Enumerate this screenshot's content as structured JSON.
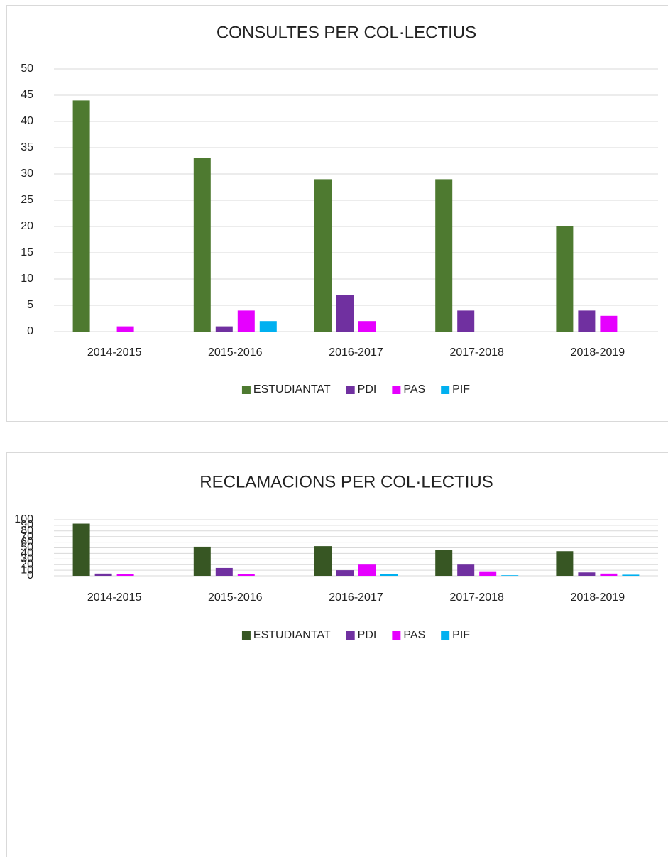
{
  "chart_data": [
    {
      "type": "bar",
      "title": "CONSULTES PER COL·LECTIUS",
      "categories": [
        "2014-2015",
        "2015-2016",
        "2016-2017",
        "2017-2018",
        "2018-2019"
      ],
      "series": [
        {
          "name": "ESTUDIANTAT",
          "color": "#4e7a30",
          "values": [
            44,
            33,
            29,
            29,
            20
          ]
        },
        {
          "name": "PDI",
          "color": "#7030a0",
          "values": [
            0,
            1,
            7,
            4,
            4
          ]
        },
        {
          "name": "PAS",
          "color": "#e600ff",
          "values": [
            1,
            4,
            2,
            0,
            3
          ]
        },
        {
          "name": "PIF",
          "color": "#00b0f0",
          "values": [
            0,
            2,
            0,
            0,
            0
          ]
        }
      ],
      "ylim": [
        0,
        50
      ],
      "yticks": [
        0,
        5,
        10,
        15,
        20,
        25,
        30,
        35,
        40,
        45,
        50
      ],
      "grid": true,
      "legend": "bottom"
    },
    {
      "type": "bar",
      "title": "RECLAMACIONS PER COL·LECTIUS",
      "categories": [
        "2014-2015",
        "2015-2016",
        "2016-2017",
        "2017-2018",
        "2018-2019"
      ],
      "series": [
        {
          "name": "ESTUDIANTAT",
          "color": "#375623",
          "values": [
            93,
            52,
            53,
            46,
            44
          ]
        },
        {
          "name": "PDI",
          "color": "#7030a0",
          "values": [
            4,
            14,
            10,
            20,
            6
          ]
        },
        {
          "name": "PAS",
          "color": "#e600ff",
          "values": [
            3,
            3,
            20,
            8,
            4
          ]
        },
        {
          "name": "PIF",
          "color": "#00b0f0",
          "values": [
            0,
            0,
            3,
            1,
            2
          ]
        }
      ],
      "ylim": [
        0,
        100
      ],
      "yticks": [
        0,
        10,
        20,
        30,
        40,
        50,
        60,
        70,
        80,
        90,
        100
      ],
      "grid": true,
      "legend": "bottom"
    }
  ]
}
